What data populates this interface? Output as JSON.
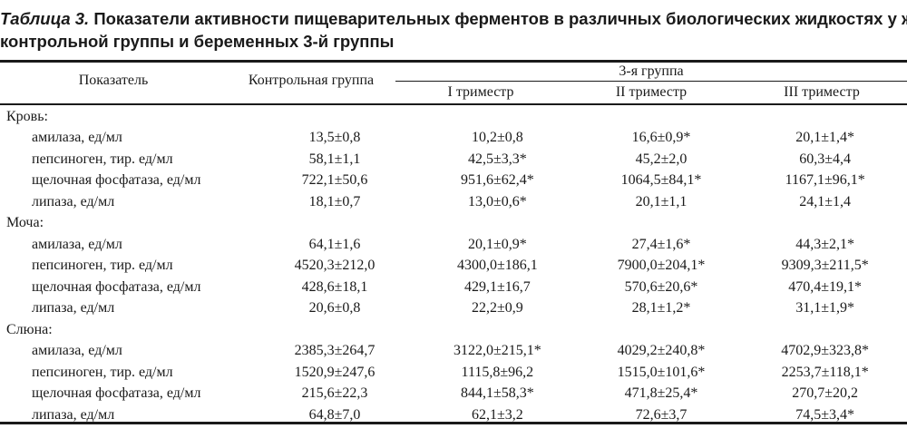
{
  "caption": {
    "number": "Таблица 3.",
    "line1": "Показатели активности пищеварительных ферментов в различных биологических жидкостях у женщин",
    "line2": "контрольной группы и беременных 3-й группы"
  },
  "header": {
    "indicator": "Показатель",
    "control": "Контрольная группа",
    "group3": "3-я группа",
    "tri1": "I триместр",
    "tri2": "II триместр",
    "tri3": "III триместр"
  },
  "rows": [
    {
      "type": "section",
      "label": "Кровь:"
    },
    {
      "type": "item",
      "label": "амилаза, ед/мл",
      "control": "13,5±0,8",
      "t1": "10,2±0,8",
      "t2": "16,6±0,9*",
      "t3": "20,1±1,4*"
    },
    {
      "type": "item",
      "label": "пепсиноген, тир. ед/мл",
      "control": "58,1±1,1",
      "t1": "42,5±3,3*",
      "t2": "45,2±2,0",
      "t3": "60,3±4,4"
    },
    {
      "type": "item",
      "label": "щелочная фосфатаза, ед/мл",
      "control": "722,1±50,6",
      "t1": "951,6±62,4*",
      "t2": "1064,5±84,1*",
      "t3": "1167,1±96,1*"
    },
    {
      "type": "item",
      "label": "липаза, ед/мл",
      "control": "18,1±0,7",
      "t1": "13,0±0,6*",
      "t2": "20,1±1,1",
      "t3": "24,1±1,4"
    },
    {
      "type": "section",
      "label": "Моча:"
    },
    {
      "type": "item",
      "label": "амилаза, ед/мл",
      "control": "64,1±1,6",
      "t1": "20,1±0,9*",
      "t2": "27,4±1,6*",
      "t3": "44,3±2,1*"
    },
    {
      "type": "item",
      "label": "пепсиноген, тир. ед/мл",
      "control": "4520,3±212,0",
      "t1": "4300,0±186,1",
      "t2": "7900,0±204,1*",
      "t3": "9309,3±211,5*"
    },
    {
      "type": "item",
      "label": "щелочная фосфатаза, ед/мл",
      "control": "428,6±18,1",
      "t1": "429,1±16,7",
      "t2": "570,6±20,6*",
      "t3": "470,4±19,1*"
    },
    {
      "type": "item",
      "label": "липаза, ед/мл",
      "control": "20,6±0,8",
      "t1": "22,2±0,9",
      "t2": "28,1±1,2*",
      "t3": "31,1±1,9*"
    },
    {
      "type": "section",
      "label": "Слюна:"
    },
    {
      "type": "item",
      "label": "амилаза, ед/мл",
      "control": "2385,3±264,7",
      "t1": "3122,0±215,1*",
      "t2": "4029,2±240,8*",
      "t3": "4702,9±323,8*"
    },
    {
      "type": "item",
      "label": "пепсиноген, тир. ед/мл",
      "control": "1520,9±247,6",
      "t1": "1115,8±96,2",
      "t2": "1515,0±101,6*",
      "t3": "2253,7±118,1*"
    },
    {
      "type": "item",
      "label": "щелочная фосфатаза, ед/мл",
      "control": "215,6±22,3",
      "t1": "844,1±58,3*",
      "t2": "471,8±25,4*",
      "t3": "270,7±20,2"
    },
    {
      "type": "item",
      "label": "липаза, ед/мл",
      "control": "64,8±7,0",
      "t1": "62,1±3,2",
      "t2": "72,6±3,7",
      "t3": "74,5±3,4*"
    }
  ]
}
